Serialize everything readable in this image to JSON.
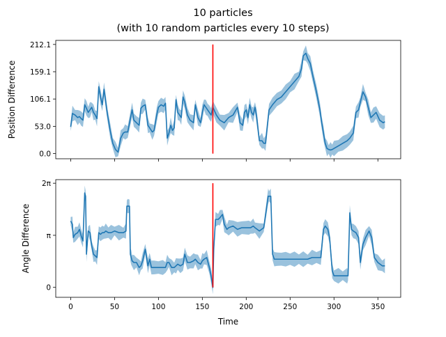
{
  "title_line1": "10 particles",
  "title_line2": "(with 10 random particles every 10 steps)",
  "colors": {
    "series": "#1f77b4",
    "band": "#1f77b4",
    "marker": "#ff0000",
    "frame": "#000000"
  },
  "chart_data": [
    {
      "type": "line",
      "title": "10 particles (with 10 random particles every 10 steps)",
      "xlabel": "",
      "ylabel": "Position Difference",
      "xlim": [
        -17,
        376
      ],
      "ylim": [
        -10,
        220
      ],
      "xticks": [
        0,
        50,
        100,
        150,
        200,
        250,
        300,
        350
      ],
      "xtick_labels_shown": false,
      "yticks": [
        0.0,
        53.0,
        106.1,
        159.1,
        212.1
      ],
      "ytick_labels": [
        "0.0",
        "53.0",
        "106.1",
        "159.1",
        "212.1"
      ],
      "vline": {
        "x": 162,
        "ymin": 0,
        "ymax": 212.1,
        "color": "#ff0000"
      },
      "grid": false,
      "series": [
        {
          "x": [
            0,
            2,
            5,
            8,
            10,
            12,
            14,
            16,
            18,
            20,
            22,
            24,
            26,
            28,
            30,
            32,
            34,
            36,
            38,
            40,
            42,
            45,
            48,
            51,
            54,
            57,
            60,
            62,
            65,
            70,
            72,
            75,
            78,
            80,
            82,
            85,
            88,
            90,
            93,
            95,
            98,
            100,
            103,
            106,
            108,
            110,
            112,
            114,
            116,
            118,
            120,
            122,
            124,
            126,
            128,
            130,
            133,
            136,
            140,
            142,
            145,
            148,
            150,
            152,
            154,
            156,
            158,
            160,
            162,
            166,
            170,
            175,
            180,
            185,
            190,
            193,
            196,
            198,
            200,
            202,
            204,
            206,
            208,
            210,
            212,
            215,
            218,
            220,
            222,
            226,
            230,
            235,
            240,
            245,
            250,
            255,
            260,
            263,
            265,
            268,
            270,
            273,
            276,
            280,
            284,
            286,
            288,
            290,
            292,
            294,
            296,
            298,
            300,
            305,
            310,
            315,
            318,
            322,
            325,
            328,
            330,
            333,
            336,
            339,
            342,
            345,
            348,
            352,
            356,
            358
          ],
          "y": [
            52,
            78,
            75,
            70,
            72,
            68,
            65,
            95,
            88,
            80,
            85,
            90,
            80,
            75,
            68,
            130,
            110,
            95,
            125,
            100,
            75,
            45,
            20,
            8,
            3,
            30,
            40,
            42,
            42,
            85,
            65,
            60,
            55,
            88,
            92,
            95,
            55,
            50,
            42,
            45,
            75,
            90,
            95,
            92,
            98,
            30,
            40,
            55,
            45,
            50,
            105,
            80,
            75,
            70,
            110,
            100,
            75,
            65,
            60,
            95,
            70,
            60,
            80,
            95,
            90,
            85,
            80,
            75,
            90,
            75,
            65,
            60,
            70,
            75,
            90,
            60,
            55,
            80,
            85,
            70,
            95,
            80,
            75,
            90,
            70,
            25,
            25,
            20,
            20,
            85,
            95,
            105,
            110,
            120,
            130,
            140,
            150,
            165,
            190,
            195,
            185,
            175,
            150,
            120,
            85,
            60,
            40,
            20,
            10,
            8,
            7,
            8,
            10,
            15,
            20,
            25,
            30,
            40,
            80,
            85,
            100,
            120,
            110,
            90,
            70,
            75,
            80,
            65,
            60,
            62
          ]
        }
      ]
    },
    {
      "type": "line",
      "xlabel": "Time",
      "ylabel": "Angle Difference",
      "xlim": [
        -17,
        376
      ],
      "ylim": [
        -0.6,
        6.5
      ],
      "xticks": [
        0,
        50,
        100,
        150,
        200,
        250,
        300,
        350
      ],
      "xtick_labels": [
        "0",
        "50",
        "100",
        "150",
        "200",
        "250",
        "300",
        "350"
      ],
      "yticks": [
        0,
        3.14159,
        6.28318
      ],
      "ytick_labels": [
        "0",
        "π",
        "2π"
      ],
      "vline": {
        "x": 162,
        "ymin": 0,
        "ymax": 6.28318,
        "color": "#ff0000"
      },
      "grid": false,
      "series": [
        {
          "x": [
            0,
            2,
            3,
            5,
            8,
            10,
            12,
            14,
            16,
            17,
            18,
            20,
            22,
            24,
            26,
            28,
            30,
            32,
            34,
            36,
            38,
            40,
            43,
            46,
            50,
            55,
            60,
            63,
            64,
            65,
            67,
            68,
            69,
            70,
            72,
            75,
            78,
            80,
            82,
            85,
            88,
            90,
            92,
            95,
            100,
            105,
            108,
            110,
            112,
            115,
            118,
            120,
            122,
            125,
            128,
            130,
            133,
            136,
            140,
            142,
            145,
            148,
            150,
            152,
            155,
            158,
            160,
            162,
            163,
            165,
            168,
            170,
            173,
            175,
            178,
            180,
            185,
            190,
            195,
            200,
            203,
            205,
            208,
            210,
            215,
            220,
            225,
            226,
            228,
            230,
            232,
            235,
            240,
            245,
            250,
            255,
            260,
            265,
            270,
            275,
            280,
            285,
            288,
            290,
            293,
            295,
            298,
            300,
            305,
            310,
            315,
            316,
            318,
            320,
            322,
            325,
            328,
            330,
            333,
            336,
            340,
            343,
            346,
            350,
            355,
            358
          ],
          "y": [
            4.0,
            3.8,
            3.0,
            3.2,
            3.3,
            3.5,
            3.1,
            2.8,
            5.7,
            5.5,
            2.0,
            3.4,
            3.3,
            2.5,
            2.0,
            1.9,
            1.8,
            3.3,
            3.2,
            3.3,
            3.3,
            3.4,
            3.3,
            3.3,
            3.4,
            3.3,
            3.3,
            3.4,
            4.9,
            4.9,
            4.9,
            2.0,
            1.8,
            1.6,
            1.5,
            1.5,
            1.2,
            1.3,
            1.6,
            2.3,
            1.3,
            1.7,
            1.2,
            1.2,
            1.2,
            1.2,
            1.2,
            1.5,
            1.5,
            1.2,
            1.2,
            1.3,
            1.4,
            1.3,
            1.4,
            2.0,
            1.5,
            1.5,
            1.6,
            1.7,
            1.5,
            1.4,
            1.6,
            1.7,
            1.8,
            1.2,
            0.7,
            0.0,
            2.3,
            4.1,
            4.1,
            4.2,
            4.4,
            3.8,
            3.5,
            3.6,
            3.7,
            3.5,
            3.6,
            3.6,
            3.6,
            3.6,
            3.7,
            3.6,
            3.4,
            3.6,
            5.5,
            5.5,
            5.5,
            2.0,
            1.7,
            1.7,
            1.7,
            1.7,
            1.7,
            1.7,
            1.7,
            1.7,
            1.7,
            1.8,
            1.8,
            1.8,
            3.5,
            3.7,
            3.5,
            3.0,
            1.0,
            0.7,
            0.7,
            0.7,
            0.7,
            0.7,
            4.5,
            3.5,
            3.4,
            3.3,
            3.0,
            1.5,
            2.6,
            3.0,
            3.4,
            3.0,
            1.8,
            1.5,
            1.3,
            1.3
          ]
        }
      ]
    }
  ]
}
